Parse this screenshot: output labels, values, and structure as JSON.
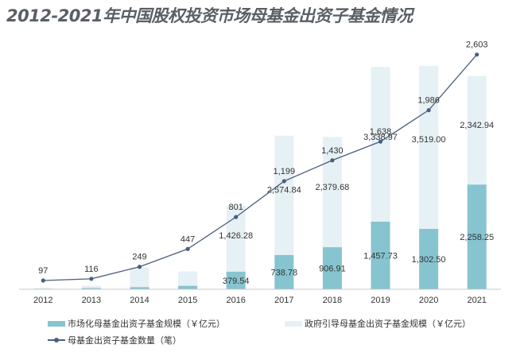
{
  "title": "2012-2021年中国股权投资市场母基金出资子基金情况",
  "colors": {
    "market_bar": "#86c4cf",
    "gov_bar": "#e6f1f5",
    "line": "#4a5f7e",
    "axis": "#c8c8c8",
    "text": "#333333",
    "title": "#5a5f66"
  },
  "legend": {
    "market": "市场化母基金出资子基金规模（￥亿元）",
    "gov": "政府引导母基金出资子基金规模（￥亿元）",
    "count": "母基金出资子基金数量（笔）"
  },
  "chart_data": {
    "type": "bar",
    "title": "2012-2021年中国股权投资市场母基金出资子基金情况",
    "categories": [
      "2012",
      "2013",
      "2014",
      "2015",
      "2016",
      "2017",
      "2018",
      "2019",
      "2020",
      "2021"
    ],
    "stacked": true,
    "series": [
      {
        "name": "市场化母基金出资子基金规模（￥亿元）",
        "kind": "bar",
        "values": [
          10,
          25,
          45,
          75,
          379.54,
          738.78,
          906.91,
          1457.73,
          1302.5,
          2258.25
        ],
        "labels": [
          "",
          "",
          "",
          "",
          "379.54",
          "738.78",
          "906.91",
          "1,457.73",
          "1,302.50",
          "2,258.25"
        ]
      },
      {
        "name": "政府引导母基金出资子基金规模（￥亿元）",
        "kind": "bar",
        "values": [
          20,
          50,
          430,
          310,
          1426.28,
          2574.84,
          2379.68,
          3338.97,
          3519.0,
          2342.94
        ],
        "labels": [
          "",
          "",
          "",
          "",
          "1,426.28",
          "2,574.84",
          "2,379.68",
          "3,338.97",
          "3,519.00",
          "2,342.94"
        ]
      },
      {
        "name": "母基金出资子基金数量（笔）",
        "kind": "line",
        "values": [
          97,
          116,
          249,
          447,
          801,
          1199,
          1430,
          1638,
          1986,
          2603
        ],
        "labels": [
          "97",
          "116",
          "249",
          "447",
          "801",
          "1,199",
          "1,430",
          "1,638",
          "1,986",
          "2,603"
        ]
      }
    ],
    "bar_ylim": [
      0,
      5350
    ],
    "line_ylim": [
      0,
      2750
    ],
    "grid": false,
    "legend_position": "bottom"
  }
}
